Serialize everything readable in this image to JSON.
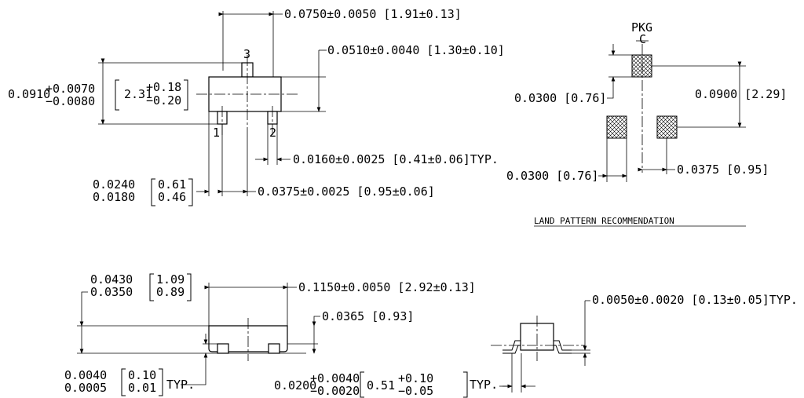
{
  "top_view": {
    "width_dim": "0.0750±0.0050 [1.91±0.13]",
    "pin3_label": "3",
    "pin1_label": "1",
    "pin2_label": "2",
    "body_dim": "0.0510±0.0040 [1.30±0.10]",
    "height_inch_base": "0.0910",
    "height_inch_plus": "+0.0070",
    "height_inch_minus": "−0.0080",
    "height_mm_base": "2.31",
    "height_mm_plus": "+0.18",
    "height_mm_minus": "−0.20",
    "lead_width_dim": "0.0160±0.0025 [0.41±0.06]TYP.",
    "lead_inch_max": "0.0240",
    "lead_inch_min": "0.0180",
    "lead_mm_max": "0.61",
    "lead_mm_min": "0.46",
    "pitch_dim": "0.0375±0.0025 [0.95±0.06]"
  },
  "land_pattern": {
    "pkg_label": "PKG",
    "cl_label": "C",
    "pad_size_dim": "0.0300 [0.76]",
    "span_dim": "0.0900 [2.29]",
    "pad_width_dim": "0.0300 [0.76]",
    "pitch_dim": "0.0375 [0.95]",
    "caption": "LAND PATTERN RECOMMENDATION"
  },
  "side_view": {
    "height_inch_max": "0.0430",
    "height_inch_min": "0.0350",
    "height_mm_max": "1.09",
    "height_mm_min": "0.89",
    "length_dim": "0.1150±0.0050 [2.92±0.13]",
    "body_height_dim": "0.0365 [0.93]",
    "standoff_inch_max": "0.0040",
    "standoff_inch_min": "0.0005",
    "standoff_mm_max": "0.10",
    "standoff_mm_min": "0.01",
    "standoff_typ": "TYP.",
    "lead_len_inch_base": "0.0200",
    "lead_len_inch_plus": "+0.0040",
    "lead_len_inch_minus": "−0.0020",
    "lead_len_mm_base": "0.51",
    "lead_len_mm_plus": "+0.10",
    "lead_len_mm_minus": "−0.05",
    "lead_len_typ": "TYP."
  },
  "end_view": {
    "thickness_dim": "0.0050±0.0020 [0.13±0.05]TYP."
  }
}
